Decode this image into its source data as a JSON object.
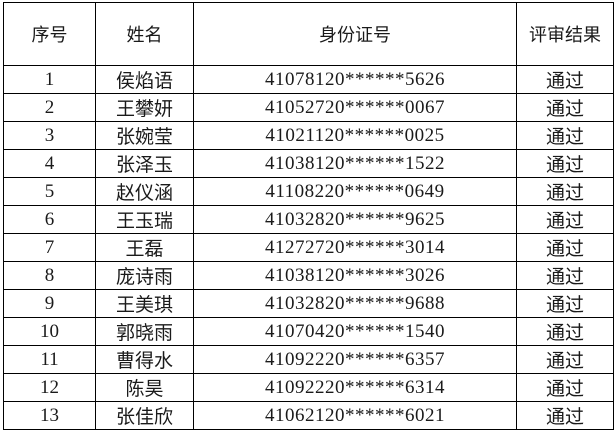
{
  "page": {
    "background_color": "#ffffff",
    "text_color": "#1a1a1a",
    "border_color": "#000000"
  },
  "table": {
    "headers": [
      "序号",
      "姓名",
      "身份证号",
      "评审结果"
    ],
    "rows": [
      {
        "no": "1",
        "name": "侯焰语",
        "id_number": "41078120******5626",
        "result": "通过"
      },
      {
        "no": "2",
        "name": "王攀妍",
        "id_number": "41052720******0067",
        "result": "通过"
      },
      {
        "no": "3",
        "name": "张婉莹",
        "id_number": "41021120******0025",
        "result": "通过"
      },
      {
        "no": "4",
        "name": "张泽玉",
        "id_number": "41038120******1522",
        "result": "通过"
      },
      {
        "no": "5",
        "name": "赵仪涵",
        "id_number": "41108220******0649",
        "result": "通过"
      },
      {
        "no": "6",
        "name": "王玉瑞",
        "id_number": "41032820******9625",
        "result": "通过"
      },
      {
        "no": "7",
        "name": "王磊",
        "id_number": "41272720******3014",
        "result": "通过"
      },
      {
        "no": "8",
        "name": "庞诗雨",
        "id_number": "41038120******3026",
        "result": "通过"
      },
      {
        "no": "9",
        "name": "王美琪",
        "id_number": "41032820******9688",
        "result": "通过"
      },
      {
        "no": "10",
        "name": "郭晓雨",
        "id_number": "41070420******1540",
        "result": "通过"
      },
      {
        "no": "11",
        "name": "曹得水",
        "id_number": "41092220******6357",
        "result": "通过"
      },
      {
        "no": "12",
        "name": "陈昊",
        "id_number": "41092220******6314",
        "result": "通过"
      },
      {
        "no": "13",
        "name": "张佳欣",
        "id_number": "41062120******6021",
        "result": "通过"
      }
    ]
  }
}
